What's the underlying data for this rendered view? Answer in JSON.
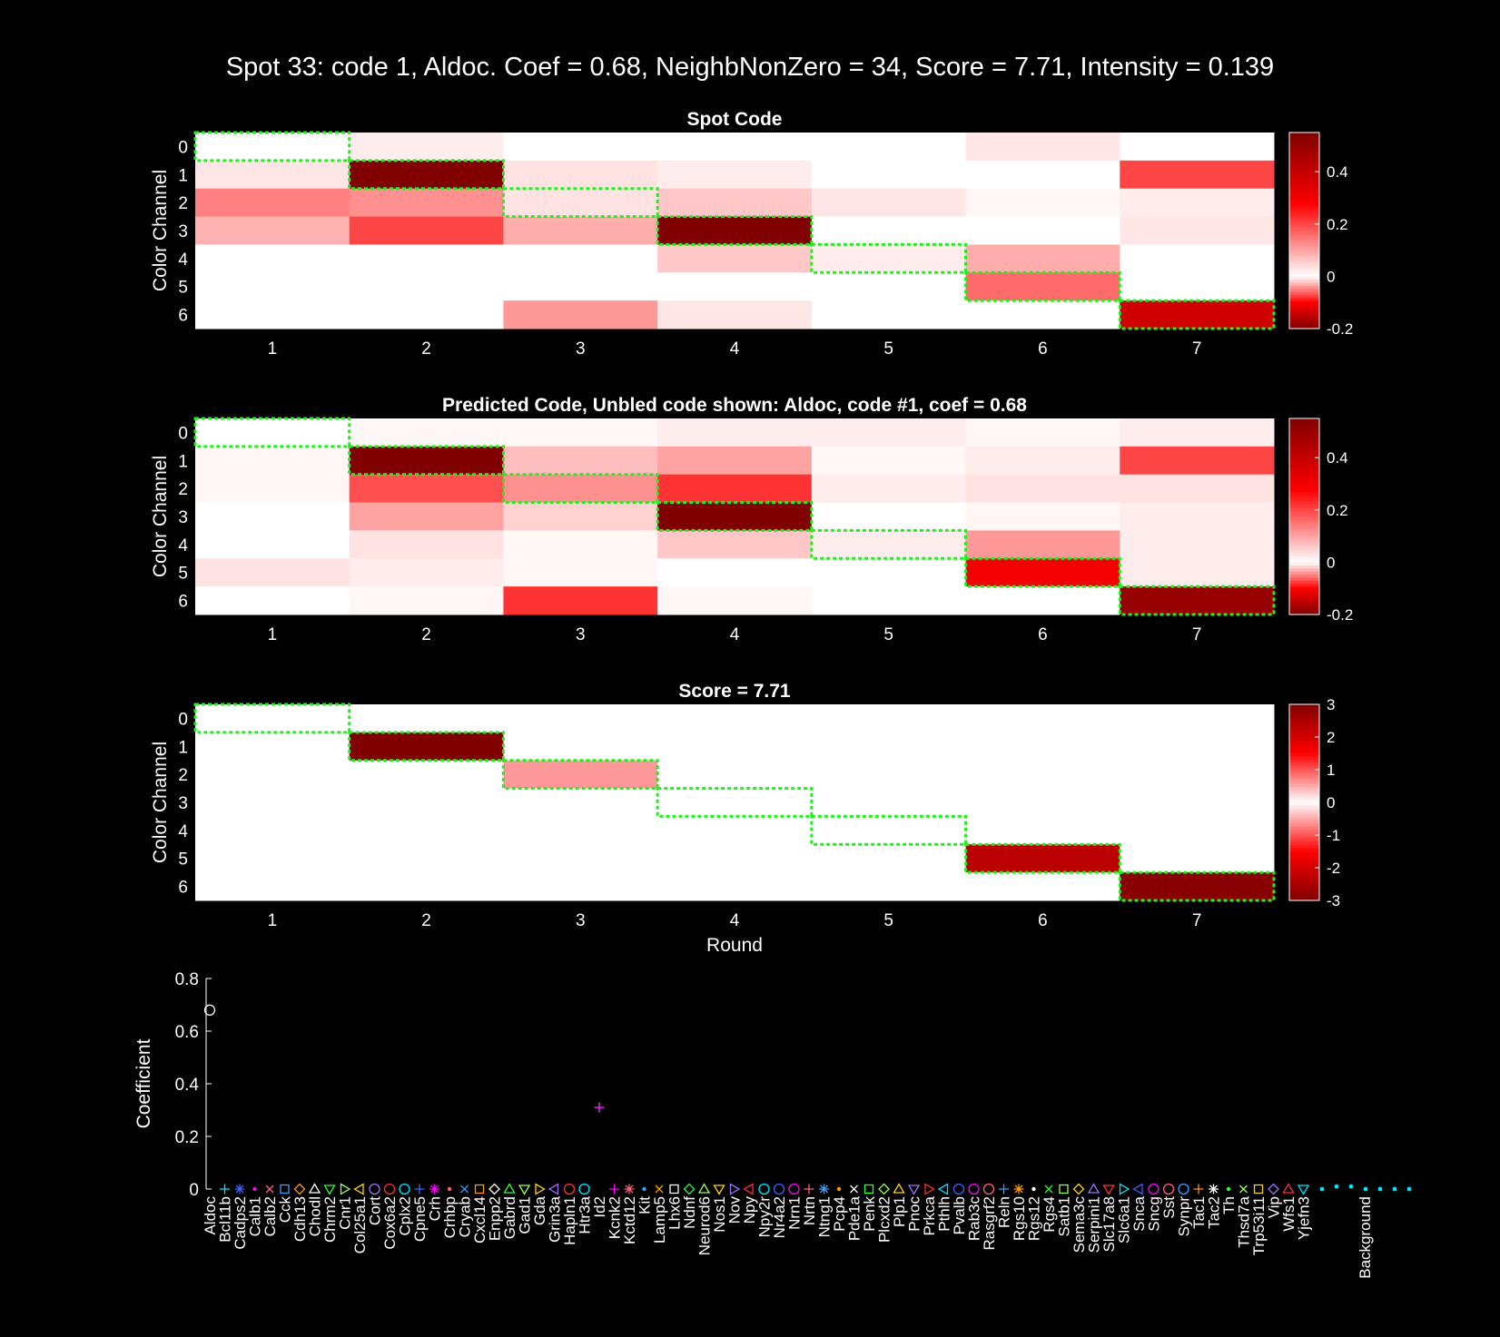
{
  "suptitle": "Spot 33: code 1, Aldoc. Coef = 0.68, NeighbNonZero = 34, Score = 7.71, Intensity = 0.139",
  "chart_data": [
    {
      "type": "heatmap",
      "title": "Spot Code",
      "ylabel": "Color Channel",
      "xlabel": "",
      "rounds": [
        "1",
        "2",
        "3",
        "4",
        "5",
        "6",
        "7"
      ],
      "channels": [
        "0",
        "1",
        "2",
        "3",
        "4",
        "5",
        "6"
      ],
      "clim": [
        -0.2,
        0.55
      ],
      "colorbar_ticks": [
        "0.4",
        "0.2",
        "0",
        "-0.2"
      ],
      "colorbar_tick_values": [
        0.4,
        0.2,
        0,
        -0.2
      ],
      "gene_code_path": [
        0,
        1,
        2,
        3,
        4,
        5,
        6
      ],
      "values": [
        [
          0.0,
          0.02,
          0.0,
          0.0,
          0.0,
          -0.01,
          0.0
        ],
        [
          -0.01,
          0.55,
          0.03,
          0.02,
          0.0,
          0.0,
          0.2
        ],
        [
          -0.05,
          0.12,
          0.03,
          0.06,
          -0.01,
          0.01,
          0.02
        ],
        [
          -0.03,
          0.2,
          0.09,
          0.55,
          0.0,
          0.0,
          -0.01
        ],
        [
          0.0,
          0.0,
          0.0,
          0.06,
          0.02,
          0.09,
          0.0
        ],
        [
          0.0,
          0.0,
          0.0,
          0.0,
          0.0,
          0.16,
          0.0
        ],
        [
          0.0,
          0.0,
          0.11,
          -0.01,
          0.0,
          0.0,
          0.38
        ]
      ]
    },
    {
      "type": "heatmap",
      "title": "Predicted Code, Unbled code shown: Aldoc, code #1, coef = 0.68",
      "ylabel": "Color Channel",
      "xlabel": "",
      "rounds": [
        "1",
        "2",
        "3",
        "4",
        "5",
        "6",
        "7"
      ],
      "channels": [
        "0",
        "1",
        "2",
        "3",
        "4",
        "5",
        "6"
      ],
      "clim": [
        -0.2,
        0.55
      ],
      "colorbar_ticks": [
        "0.4",
        "0.2",
        "0",
        "-0.2"
      ],
      "colorbar_tick_values": [
        0.4,
        0.2,
        0,
        -0.2
      ],
      "gene_code_path": [
        0,
        1,
        2,
        3,
        4,
        5,
        6
      ],
      "values": [
        [
          0.0,
          0.01,
          0.01,
          0.02,
          0.02,
          0.01,
          0.02
        ],
        [
          0.01,
          0.55,
          0.07,
          0.1,
          0.01,
          0.02,
          0.2
        ],
        [
          0.01,
          0.19,
          0.12,
          0.22,
          0.02,
          0.03,
          0.03
        ],
        [
          0.0,
          0.1,
          0.05,
          0.55,
          0.0,
          0.01,
          0.02
        ],
        [
          0.0,
          0.03,
          0.01,
          0.06,
          0.02,
          0.11,
          0.02
        ],
        [
          0.03,
          0.02,
          0.01,
          0.0,
          0.0,
          0.3,
          0.02
        ],
        [
          0.0,
          0.01,
          0.22,
          0.01,
          0.0,
          0.0,
          0.5
        ]
      ]
    },
    {
      "type": "heatmap",
      "title": "Score = 7.71",
      "ylabel": "Color Channel",
      "xlabel": "Round",
      "rounds": [
        "1",
        "2",
        "3",
        "4",
        "5",
        "6",
        "7"
      ],
      "channels": [
        "0",
        "1",
        "2",
        "3",
        "4",
        "5",
        "6"
      ],
      "clim": [
        -3,
        3
      ],
      "colorbar_ticks": [
        "3",
        "2",
        "1",
        "0",
        "-1",
        "-2",
        "-3"
      ],
      "colorbar_tick_values": [
        3,
        2,
        1,
        0,
        -1,
        -2,
        -3
      ],
      "gene_code_path": [
        0,
        1,
        2,
        3,
        4,
        5,
        6
      ],
      "values": [
        [
          0,
          0,
          0,
          0,
          0,
          0,
          0
        ],
        [
          0,
          3.0,
          0,
          0,
          0,
          0,
          0
        ],
        [
          0,
          0,
          -0.6,
          0,
          0,
          0,
          0
        ],
        [
          0,
          0,
          0,
          0,
          0,
          0,
          0
        ],
        [
          0,
          0,
          0,
          0,
          0,
          0,
          0
        ],
        [
          0,
          0,
          0,
          0,
          0,
          2.3,
          0
        ],
        [
          0,
          0,
          0,
          0,
          0,
          0,
          2.9
        ]
      ]
    },
    {
      "type": "scatter",
      "title": "",
      "xlabel": "",
      "ylabel": "Coefficient",
      "ylim": [
        0,
        0.8
      ],
      "yticks": [
        "0",
        "0.2",
        "0.4",
        "0.6",
        "0.8"
      ],
      "ytick_values": [
        0,
        0.2,
        0.4,
        0.6,
        0.8
      ],
      "highlight_color": "#ff0000",
      "background_color": "#00e5ff",
      "genes": [
        "Aldoc",
        "Bcl11b",
        "Cadps2",
        "Calb1",
        "Calb2",
        "Cck",
        "Cdh13",
        "Chodl",
        "Chrm2",
        "Cnr1",
        "Col25a1",
        "Cort",
        "Cox6a2",
        "Cplx2",
        "Cpne5",
        "Crh",
        "Crhbp",
        "Cryab",
        "Cxcl14",
        "Enpp2",
        "Gabrd",
        "Gad1",
        "Gda",
        "Grin3a",
        "Hapln1",
        "Htr3a",
        "Id2",
        "Kcnk2",
        "Kctd12",
        "Kit",
        "Lamp5",
        "Lhx6",
        "Ndnf",
        "Neurod6",
        "Nos1",
        "Nov",
        "Npy",
        "Npy2r",
        "Nr4a2",
        "Nrn1",
        "Nrtn",
        "Ntng1",
        "Pcp4",
        "Pde1a",
        "Penk",
        "Plcxd2",
        "Plp1",
        "Pnoc",
        "Prkca",
        "Pthlh",
        "Pvalb",
        "Rab3c",
        "Rasgrf2",
        "Reln",
        "Rgs10",
        "Rgs12",
        "Rgs4",
        "Satb1",
        "Sema3c",
        "Serpini1",
        "Slc17a8",
        "Slc6a1",
        "Snca",
        "Sncg",
        "Sst",
        "Synpr",
        "Tac1",
        "Tac2",
        "Th",
        "Thsd7a",
        "Trp53i11",
        "Vip",
        "Wfs1",
        "Yjefn3"
      ],
      "gene_label_tags": [
        "Aldoc",
        "Bcl11b",
        "Cadps2",
        "Calb1",
        "Calb2",
        "Cck",
        "Cdh13",
        "Chodl",
        "Chrm2",
        "Cnr1",
        "Col25a1",
        "Cort",
        "Cox6a2",
        "Cplx2",
        "Cpne5",
        "Crh",
        "Crhbp",
        "Cryab",
        "Cxcl14",
        "Enpp2",
        "Gabrd",
        "Gad1",
        "Gda",
        "Grin3a",
        "Hapln1",
        "Htr3a",
        "Id2",
        "Kcnk2",
        "Kctd12",
        "Kit",
        "Lamp5",
        "Lhx6",
        "Ndnf",
        "Neurod6",
        "Nos1",
        "Nov",
        "Npy",
        "Npy2r",
        "Nr4a2",
        "Nrn1",
        "Nrtn",
        "Ntng1",
        "Pcp4",
        "Pde1a",
        "Penk",
        "Plcxd2",
        "Plp1",
        "Pnoc",
        "Prkca",
        "Pthlh",
        "Pvalb",
        "Rab3c",
        "Rasgrf2",
        "Reln",
        "Rgs10",
        "Rgs12",
        "Rgs4",
        "Satb1",
        "Sema3c",
        "Serpini1",
        "Slc17a8",
        "Slc6a1",
        "Snca",
        "Sncg",
        "Sst",
        "Synpr",
        "Tac1",
        "Tac2",
        "Th",
        "Thsd7a",
        "Trp53i11",
        "Vip",
        "Wfs1",
        "Yjefn3"
      ],
      "coefficients": [
        0.68,
        0,
        0,
        0,
        0,
        0,
        0,
        0,
        0,
        0,
        0,
        0,
        0,
        0,
        0,
        0,
        0,
        0,
        0,
        0,
        0,
        0,
        0,
        0,
        0,
        0,
        0.31,
        0,
        0,
        0,
        0,
        0,
        0,
        0,
        0,
        0,
        0,
        0,
        0,
        0,
        0,
        0,
        0,
        0,
        0,
        0,
        0,
        0,
        0,
        0,
        0,
        0,
        0,
        0,
        0,
        0,
        0,
        0,
        0,
        0,
        0,
        0,
        0,
        0,
        0,
        0,
        0,
        0,
        0,
        0,
        0,
        0,
        0,
        0
      ],
      "background_label": "Background",
      "background_values": [
        0.0,
        0.01,
        0.01,
        0.0,
        0.0,
        0.0,
        0.0
      ]
    }
  ]
}
